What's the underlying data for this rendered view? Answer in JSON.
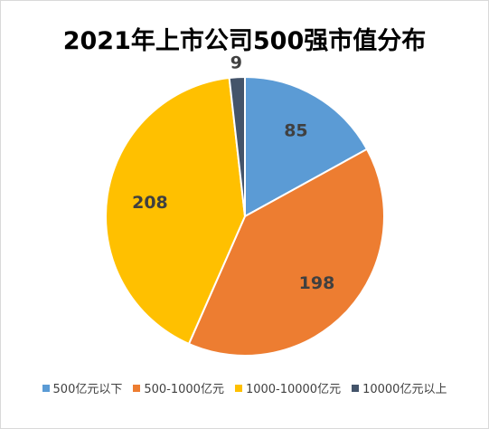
{
  "chart_data": {
    "type": "pie",
    "title": "2021年上市公司500强市值分布",
    "categories": [
      "500亿元以下",
      "500-1000亿元",
      "1000-10000亿元",
      "10000亿元以上"
    ],
    "values": [
      85,
      198,
      208,
      9
    ],
    "colors": [
      "#5b9bd5",
      "#ed7d31",
      "#ffc000",
      "#44546a"
    ],
    "label_colors": [
      "#404040",
      "#404040",
      "#404040",
      "#404040"
    ],
    "legend_position": "bottom"
  }
}
